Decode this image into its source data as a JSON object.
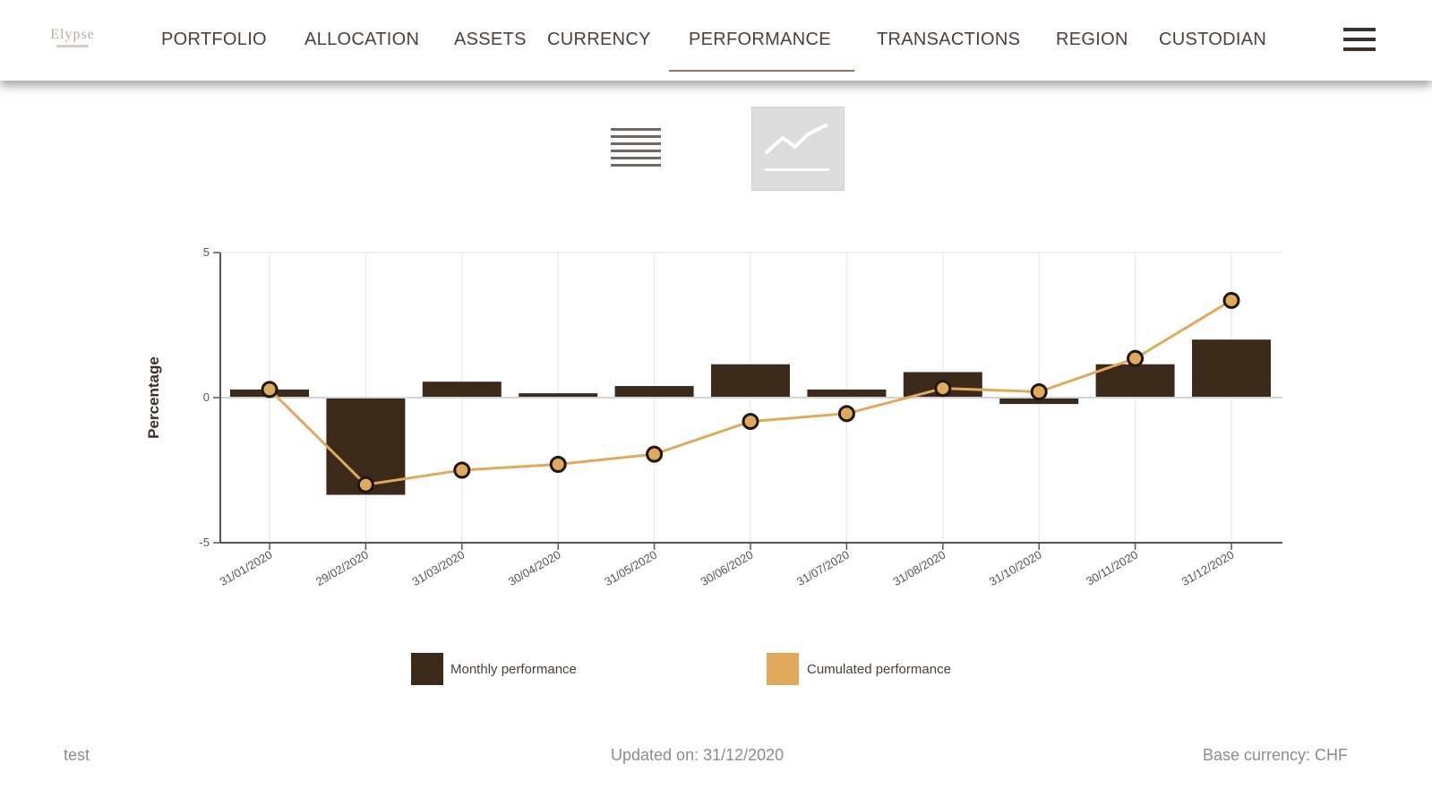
{
  "header": {
    "logo_text": "Elypse",
    "nav_items": [
      {
        "label": "PORTFOLIO"
      },
      {
        "label": "ALLOCATION"
      },
      {
        "label": "ASSETS"
      },
      {
        "label": "CURRENCY"
      },
      {
        "label": "PERFORMANCE",
        "active": true
      },
      {
        "label": "TRANSACTIONS"
      },
      {
        "label": "REGION"
      },
      {
        "label": "CUSTODIAN"
      }
    ],
    "menu_icon": "hamburger-menu-icon"
  },
  "view_toggle": {
    "table_icon": "table-view-icon",
    "chart_icon": "line-chart-icon",
    "active": "chart"
  },
  "chart_data": {
    "type": "bar",
    "categories": [
      "31/01/2020",
      "29/02/2020",
      "31/03/2020",
      "30/04/2020",
      "31/05/2020",
      "30/06/2020",
      "31/07/2020",
      "31/08/2020",
      "31/10/2020",
      "30/11/2020",
      "31/12/2020"
    ],
    "series": [
      {
        "name": "Monthly performance",
        "type": "bar",
        "color": "#3b2a1a",
        "values": [
          0.28,
          -3.35,
          0.55,
          0.15,
          0.4,
          1.15,
          0.28,
          0.88,
          -0.22,
          1.15,
          2.0
        ]
      },
      {
        "name": "Cumulated performance",
        "type": "line",
        "color": "#e0a95c",
        "values": [
          0.28,
          -3.0,
          -2.5,
          -2.3,
          -1.95,
          -0.82,
          -0.55,
          0.32,
          0.2,
          1.35,
          3.35
        ]
      }
    ],
    "ylabel": "Percentage",
    "xlabel": "",
    "ylim": [
      -5,
      5
    ],
    "yticks": [
      -5,
      0,
      5
    ],
    "grid": "vertical",
    "legend": "bottom"
  },
  "footer": {
    "left": "test",
    "center": "Updated on: 31/12/2020",
    "right": "Base currency: CHF"
  }
}
